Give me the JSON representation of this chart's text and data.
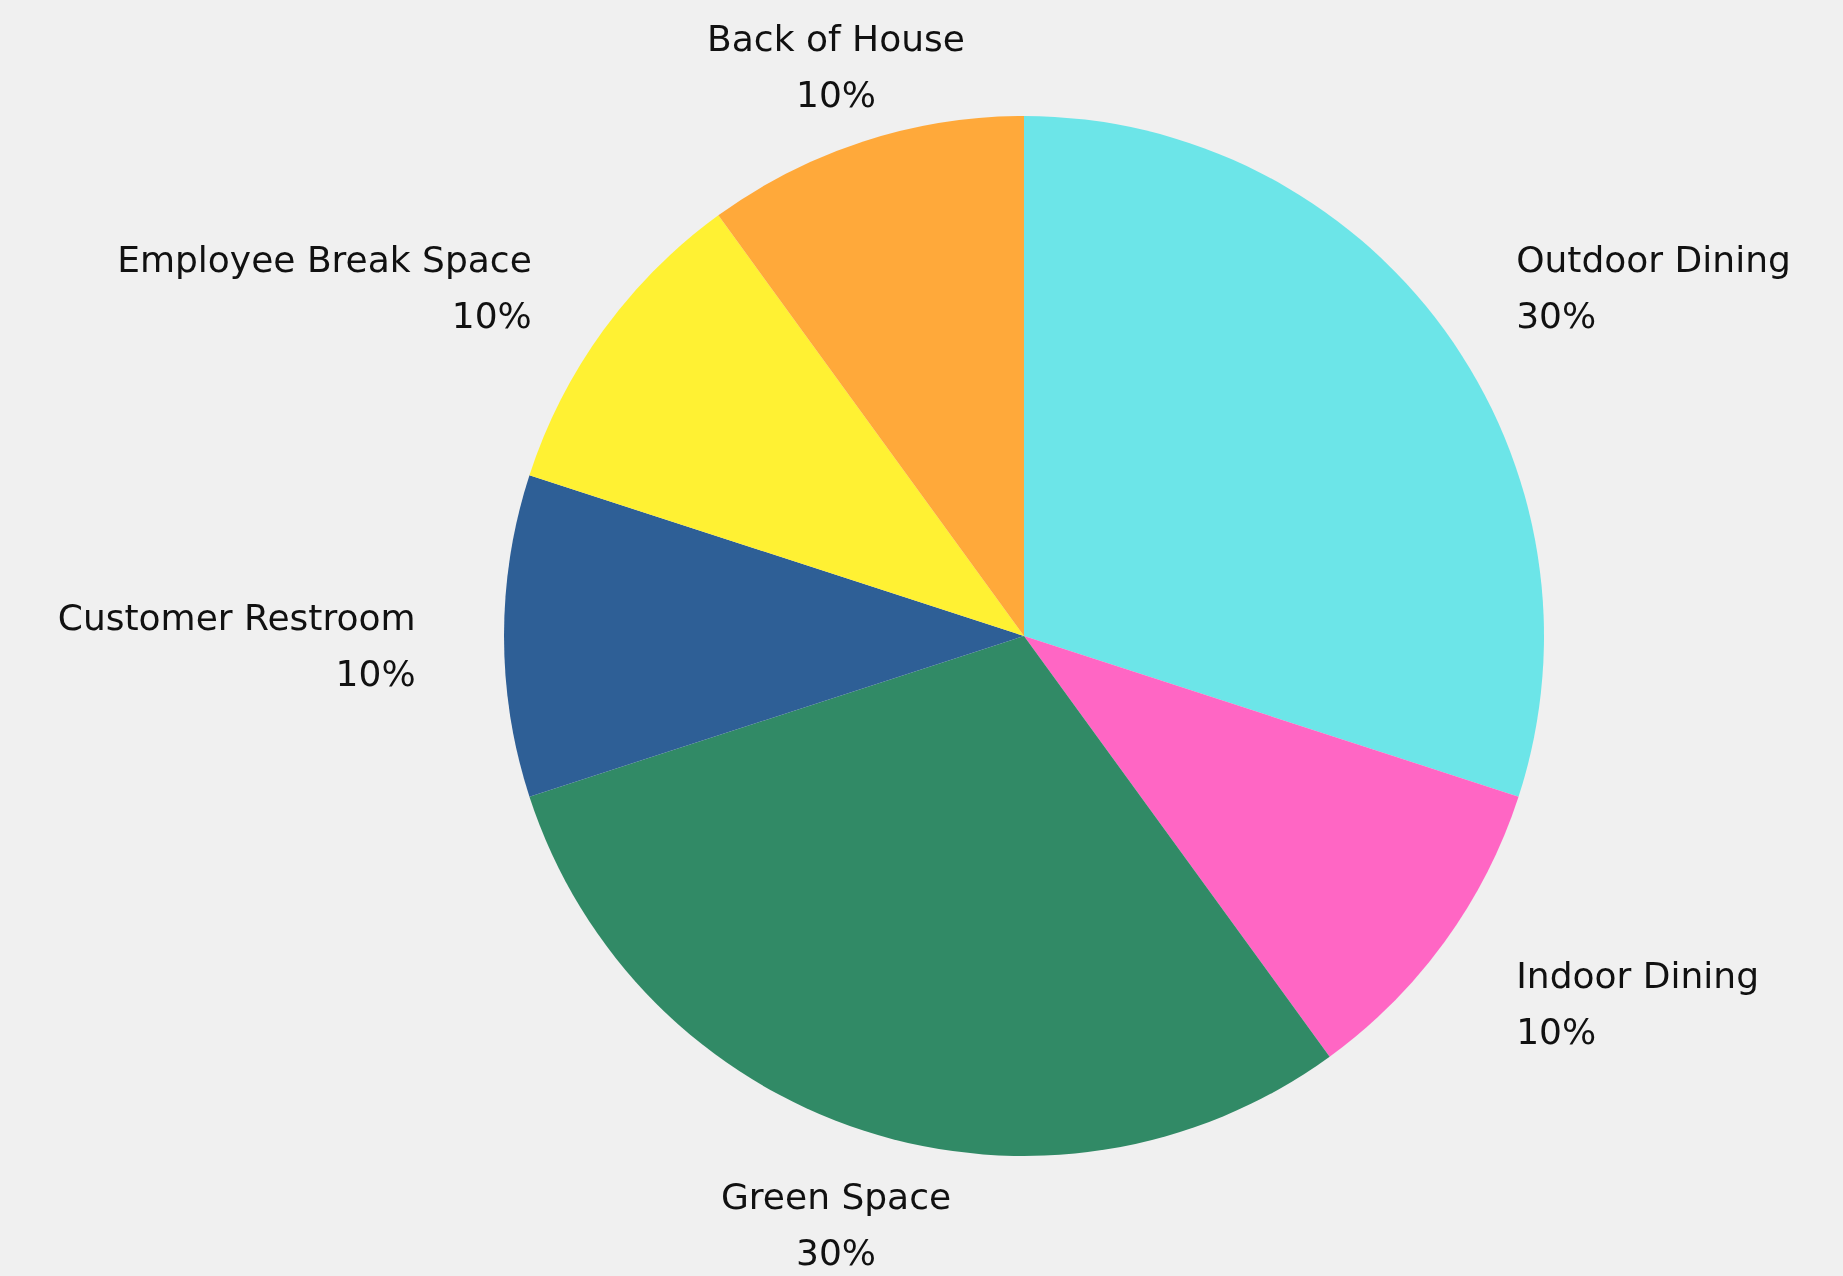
{
  "chart_data": {
    "type": "pie",
    "categories": [
      "Outdoor Dining",
      "Indoor Dining",
      "Green Space",
      "Customer Restroom",
      "Employee Break Space",
      "Back of House"
    ],
    "values": [
      30,
      10,
      30,
      10,
      10,
      10
    ],
    "colors": [
      "#6ce5e8",
      "#ff66c4",
      "#318a66",
      "#2e5f96",
      "#fff133",
      "#ffa93a"
    ],
    "value_labels": [
      "30%",
      "10%",
      "30%",
      "10%",
      "10%",
      "10%"
    ]
  }
}
